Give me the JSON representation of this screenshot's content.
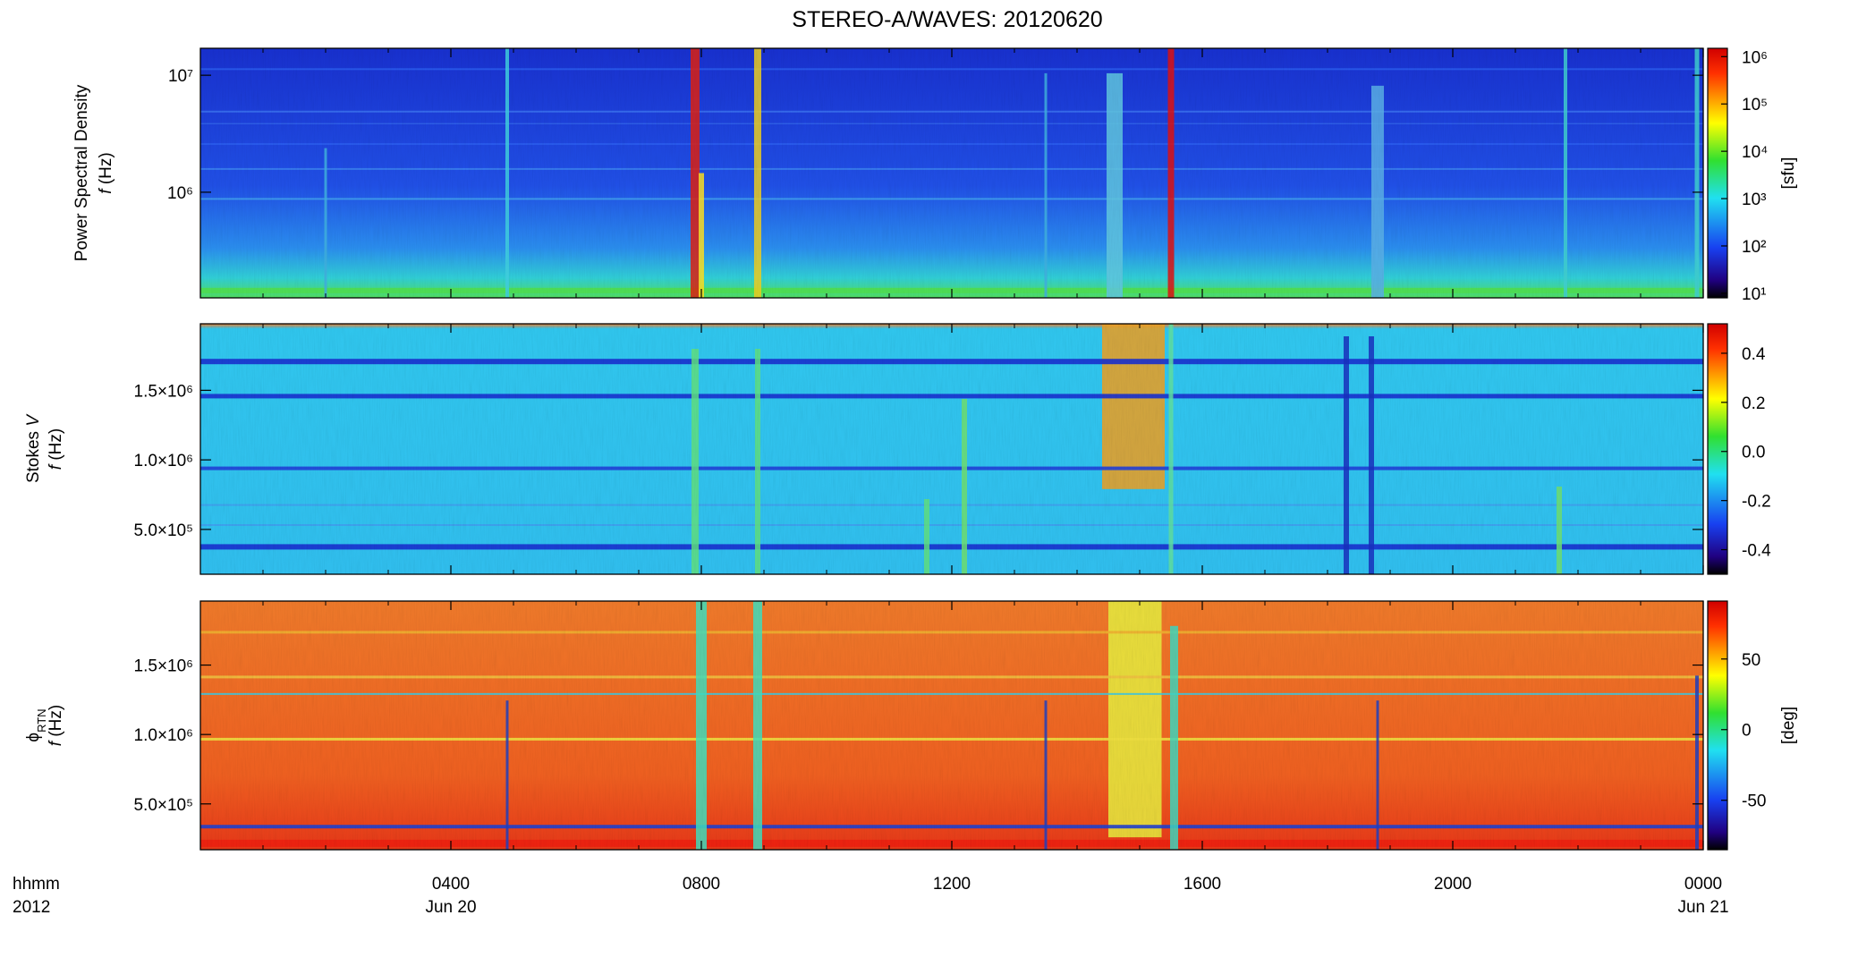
{
  "chart_data": [
    {
      "type": "spectrogram",
      "title": "STEREO-A/WAVES: 20120620",
      "ylabel": [
        [
          {
            "text": "Power Spectral Density"
          }
        ],
        [
          {
            "text": "f",
            "italic": true
          },
          {
            "text": " (Hz)"
          }
        ]
      ],
      "ylog": true,
      "ylim": [
        125000,
        17000000
      ],
      "yticks": [
        {
          "value": 1000000,
          "label": "10⁶"
        },
        {
          "value": 10000000,
          "label": "10⁷"
        }
      ],
      "colorbar": {
        "log": true,
        "lim": [
          8,
          1500000
        ],
        "ticks": [
          {
            "value": 10,
            "label": "10¹"
          },
          {
            "value": 100,
            "label": "10²"
          },
          {
            "value": 1000,
            "label": "10³"
          },
          {
            "value": 10000,
            "label": "10⁴"
          },
          {
            "value": 100000,
            "label": "10⁵"
          },
          {
            "value": 1000000,
            "label": "10⁶"
          }
        ],
        "label": "[sfu]"
      }
    },
    {
      "type": "spectrogram",
      "ylabel": [
        [
          {
            "text": "Stokes "
          },
          {
            "text": "V",
            "italic": true
          }
        ],
        [
          {
            "text": "f",
            "italic": true
          },
          {
            "text": " (Hz)"
          }
        ]
      ],
      "ylog": false,
      "ylim": [
        178000,
        1978000
      ],
      "yticks": [
        {
          "value": 500000,
          "label": "5.0×10⁵"
        },
        {
          "value": 1000000,
          "label": "1.0×10⁶"
        },
        {
          "value": 1500000,
          "label": "1.5×10⁶"
        }
      ],
      "colorbar": {
        "log": false,
        "lim": [
          -0.5,
          0.52
        ],
        "ticks": [
          -0.4,
          -0.2,
          {
            "value": 0,
            "label": "0.0"
          },
          0.2,
          0.4
        ]
      }
    },
    {
      "type": "spectrogram",
      "ylabel": [
        [
          {
            "text": "ϕ"
          },
          {
            "text": "RTN",
            "sub": true
          }
        ],
        [
          {
            "text": "f",
            "italic": true
          },
          {
            "text": " (Hz)"
          }
        ]
      ],
      "ylog": false,
      "ylim": [
        170000,
        1961000
      ],
      "yticks": [
        {
          "value": 500000,
          "label": "5.0×10⁵"
        },
        {
          "value": 1000000,
          "label": "1.0×10⁶"
        },
        {
          "value": 1500000,
          "label": "1.5×10⁶"
        }
      ],
      "colorbar": {
        "log": false,
        "lim": [
          -85,
          91
        ],
        "ticks": [
          -50,
          0,
          50
        ],
        "label": "[deg]"
      },
      "xlim": [
        0,
        24
      ],
      "xticks": [
        {
          "value": 4,
          "label": "0400"
        },
        {
          "value": 8,
          "label": "0800"
        },
        {
          "value": 12,
          "label": "1200"
        },
        {
          "value": 16,
          "label": "1600"
        },
        {
          "value": 20,
          "label": "2000"
        },
        {
          "value": 24,
          "label": "0000"
        }
      ],
      "xdates": [
        {
          "value": 4,
          "label": "Jun 20"
        },
        {
          "value": 24,
          "label": "Jun 21"
        }
      ],
      "xlabel": [
        "hhmm",
        "2012"
      ]
    }
  ]
}
